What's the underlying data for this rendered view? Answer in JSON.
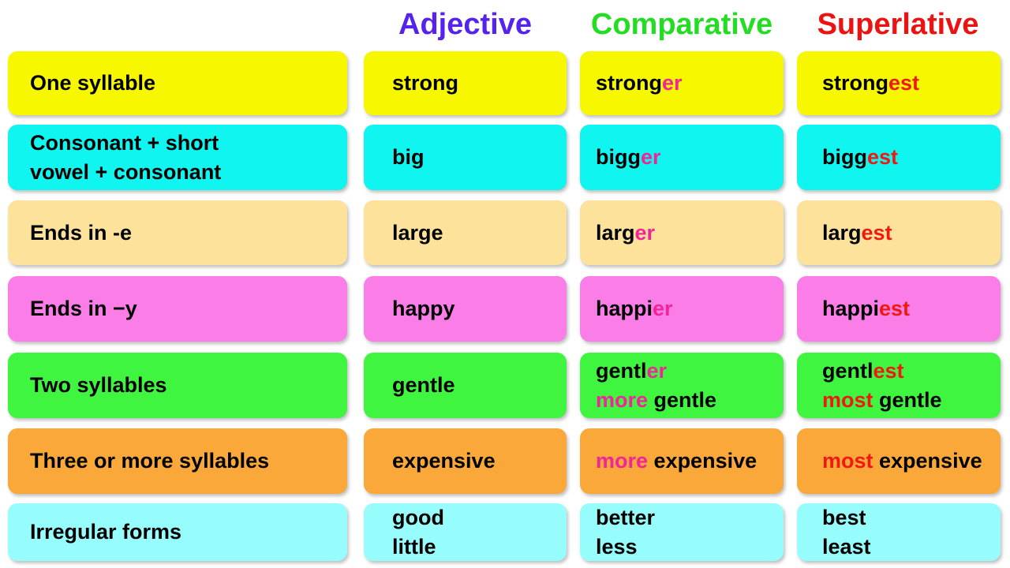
{
  "headers": [
    {
      "text": "Adjective",
      "color": "#5522ee"
    },
    {
      "text": "Comparative",
      "color": "#22dd22"
    },
    {
      "text": "Superlative",
      "color": "#ee1111"
    }
  ],
  "accent_colors": {
    "comparative_suffix": "#f0259a",
    "superlative_suffix": "#ee1a12"
  },
  "rows": [
    {
      "color": "#f7f700",
      "cells": [
        [
          [
            {
              "t": "One syllable"
            }
          ]
        ],
        [
          [
            {
              "t": "strong"
            }
          ]
        ],
        [
          [
            {
              "t": "strong"
            },
            {
              "t": "er",
              "c": "cmp"
            }
          ]
        ],
        [
          [
            {
              "t": "strong"
            },
            {
              "t": "est",
              "c": "sup"
            }
          ]
        ]
      ]
    },
    {
      "color": "#11f5f0",
      "cells": [
        [
          [
            {
              "t": "Consonant + short"
            }
          ],
          [
            {
              "t": "vowel + consonant"
            }
          ]
        ],
        [
          [
            {
              "t": "big"
            }
          ]
        ],
        [
          [
            {
              "t": "bigg"
            },
            {
              "t": "er",
              "c": "cmp"
            }
          ]
        ],
        [
          [
            {
              "t": "bigg"
            },
            {
              "t": "est",
              "c": "sup"
            }
          ]
        ]
      ]
    },
    {
      "color": "#fde29c",
      "cells": [
        [
          [
            {
              "t": "Ends in -e"
            }
          ]
        ],
        [
          [
            {
              "t": "large"
            }
          ]
        ],
        [
          [
            {
              "t": "larg"
            },
            {
              "t": "er",
              "c": "cmp"
            }
          ]
        ],
        [
          [
            {
              "t": "larg"
            },
            {
              "t": "est",
              "c": "sup"
            }
          ]
        ]
      ]
    },
    {
      "color": "#fb7de8",
      "cells": [
        [
          [
            {
              "t": "Ends in −y"
            }
          ]
        ],
        [
          [
            {
              "t": "happy"
            }
          ]
        ],
        [
          [
            {
              "t": "happi"
            },
            {
              "t": "er",
              "c": "cmp"
            }
          ]
        ],
        [
          [
            {
              "t": "happi"
            },
            {
              "t": "est",
              "c": "sup"
            }
          ]
        ]
      ]
    },
    {
      "color": "#40f540",
      "cells": [
        [
          [
            {
              "t": "Two syllables"
            }
          ]
        ],
        [
          [
            {
              "t": "gentle"
            }
          ]
        ],
        [
          [
            {
              "t": "gentl"
            },
            {
              "t": "er",
              "c": "cmp"
            }
          ],
          [
            {
              "t": "more",
              "c": "cmp"
            },
            {
              "t": " gentle"
            }
          ]
        ],
        [
          [
            {
              "t": "gentl"
            },
            {
              "t": "est",
              "c": "sup"
            }
          ],
          [
            {
              "t": "most",
              "c": "sup"
            },
            {
              "t": " gentle"
            }
          ]
        ]
      ]
    },
    {
      "color": "#fba83a",
      "cells": [
        [
          [
            {
              "t": "Three or more syllables"
            }
          ]
        ],
        [
          [
            {
              "t": "expensive"
            }
          ]
        ],
        [
          [
            {
              "t": "more",
              "c": "cmp"
            },
            {
              "t": " expensive"
            }
          ]
        ],
        [
          [
            {
              "t": "most",
              "c": "sup"
            },
            {
              "t": " expensive"
            }
          ]
        ]
      ]
    },
    {
      "color": "#97fcfc",
      "cells": [
        [
          [
            {
              "t": "Irregular forms"
            }
          ]
        ],
        [
          [
            {
              "t": "good"
            }
          ],
          [
            {
              "t": "little"
            }
          ]
        ],
        [
          [
            {
              "t": "better"
            }
          ],
          [
            {
              "t": "less"
            }
          ]
        ],
        [
          [
            {
              "t": "best"
            }
          ],
          [
            {
              "t": "least"
            }
          ]
        ]
      ]
    }
  ]
}
